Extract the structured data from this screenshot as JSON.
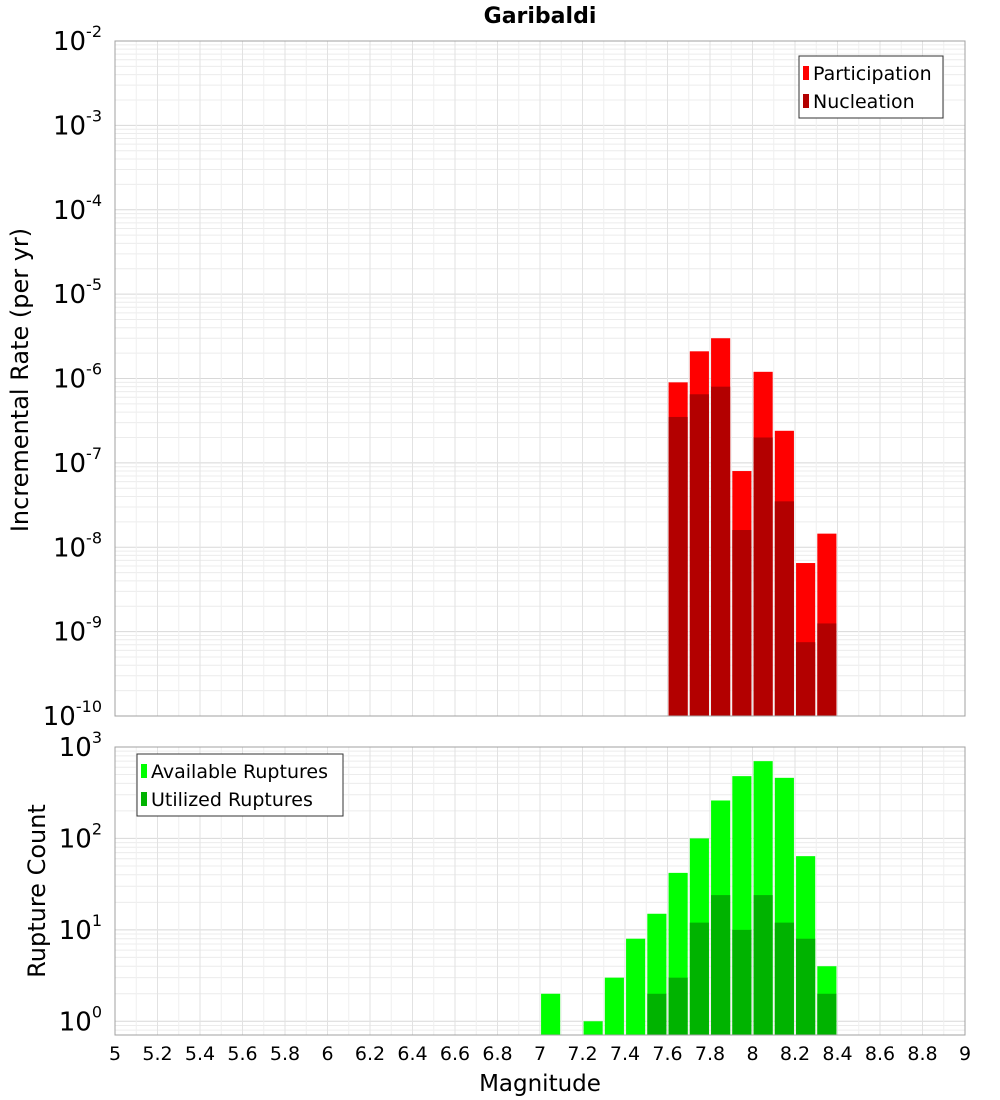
{
  "chart_data": [
    {
      "type": "bar",
      "title": "Garibaldi",
      "xlabel": "",
      "ylabel": "Incremental Rate (per yr)",
      "yscale": "log",
      "ylim_exp": [
        -10,
        -2
      ],
      "xlim": [
        5,
        9
      ],
      "grid": true,
      "legend_position": "top-right",
      "x": [
        7.65,
        7.75,
        7.85,
        7.95,
        8.05,
        8.15,
        8.25,
        8.35
      ],
      "series": [
        {
          "name": "Participation",
          "color": "#ff0000",
          "values": [
            9e-07,
            2.1e-06,
            3e-06,
            8e-08,
            1.2e-06,
            2.4e-07,
            6.5e-09,
            1.45e-08
          ]
        },
        {
          "name": "Nucleation",
          "color": "#b30000",
          "values": [
            3.5e-07,
            6.5e-07,
            8e-07,
            1.6e-08,
            2e-07,
            3.5e-08,
            7.5e-10,
            1.25e-09
          ]
        }
      ]
    },
    {
      "type": "bar",
      "title": "",
      "xlabel": "Magnitude",
      "ylabel": "Rupture Count",
      "yscale": "log",
      "ylim_exp": [
        -0.15,
        3
      ],
      "xlim": [
        5,
        9
      ],
      "xticks": [
        "5",
        "5.2",
        "5.4",
        "5.6",
        "5.8",
        "6",
        "6.2",
        "6.4",
        "6.6",
        "6.8",
        "7",
        "7.2",
        "7.4",
        "7.6",
        "7.8",
        "8",
        "8.2",
        "8.4",
        "8.6",
        "8.8",
        "9"
      ],
      "grid": true,
      "legend_position": "top-left",
      "x": [
        7.05,
        7.25,
        7.35,
        7.45,
        7.55,
        7.65,
        7.75,
        7.85,
        7.95,
        8.05,
        8.15,
        8.25,
        8.35
      ],
      "series": [
        {
          "name": "Available Ruptures",
          "color": "#00ff00",
          "values": [
            2,
            1,
            3,
            8,
            15,
            42,
            100,
            260,
            480,
            700,
            460,
            64,
            4
          ]
        },
        {
          "name": "Utilized Ruptures",
          "color": "#00b300",
          "values": [
            null,
            null,
            null,
            null,
            2,
            3,
            12,
            24,
            10,
            24,
            12,
            8,
            2
          ]
        }
      ]
    }
  ]
}
